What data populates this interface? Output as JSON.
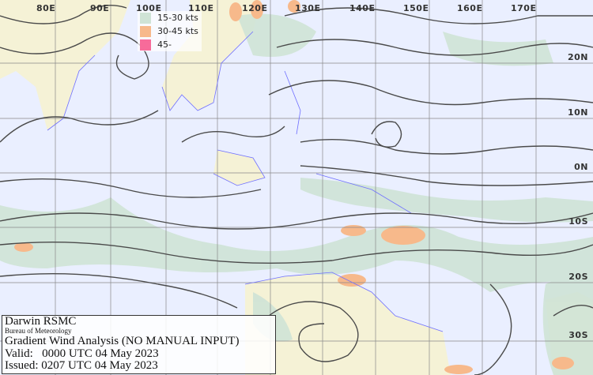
{
  "map": {
    "longitude_labels": [
      "80E",
      "90E",
      "100E",
      "110E",
      "120E",
      "130E",
      "140E",
      "150E",
      "160E",
      "170E"
    ],
    "latitude_labels": [
      "20N",
      "10N",
      "0N",
      "10S",
      "20S",
      "30S"
    ],
    "legend": [
      {
        "label": "15-30 kts",
        "color": "#cfe3d6"
      },
      {
        "label": "30-45 kts",
        "color": "#f7b98b"
      },
      {
        "label": "45-",
        "color": "#f76b9a"
      }
    ],
    "colors": {
      "ocean": "#eaefff",
      "land": "#f5f2d6",
      "coastline": "#6f6fff",
      "streamline": "#4a4a4a",
      "grid": "#888888"
    }
  },
  "info": {
    "centre": "Darwin RSMC",
    "agency": "Bureau of Meteorology",
    "title": "Gradient Wind Analysis (NO MANUAL INPUT)",
    "valid": "Valid:   0000 UTC 04 May 2023",
    "issued": "Issued: 0207 UTC 04 May 2023"
  }
}
